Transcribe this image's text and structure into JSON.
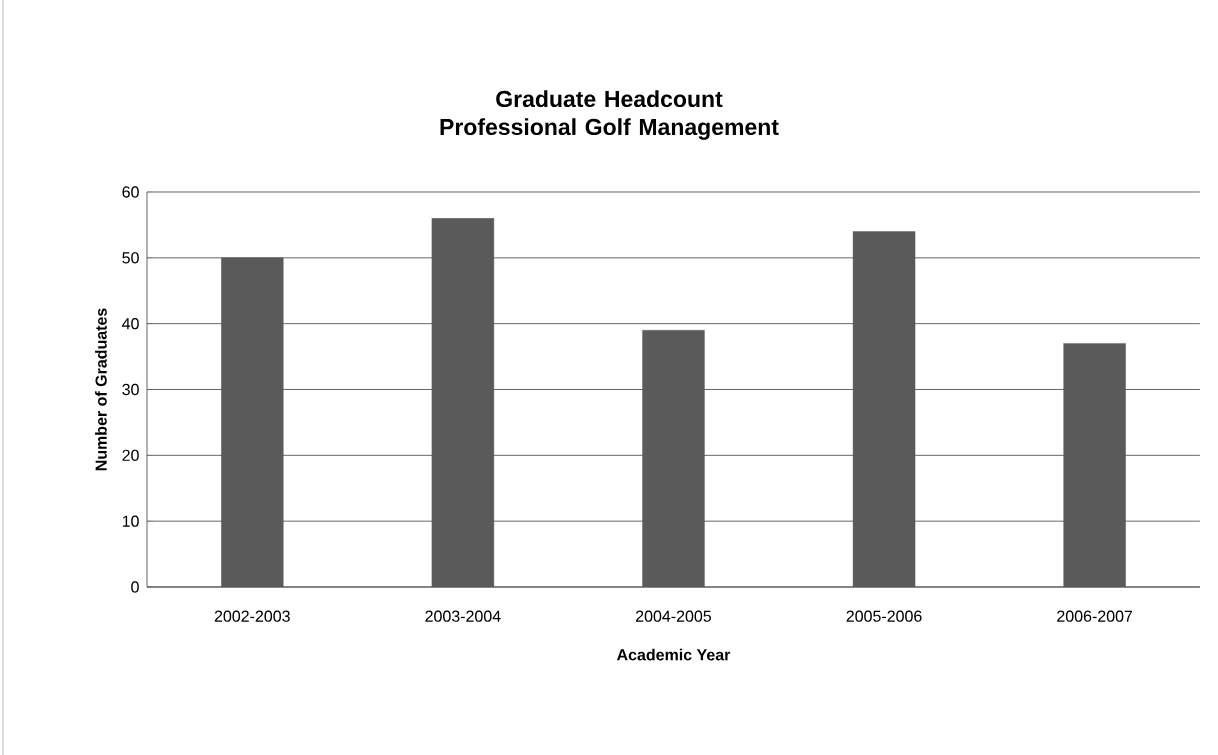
{
  "chart_data": {
    "type": "bar",
    "title": "Graduate Headcount\nProfessional Golf Management",
    "xlabel": "Academic Year",
    "ylabel": "Number of Graduates",
    "categories": [
      "2002-2003",
      "2003-2004",
      "2004-2005",
      "2005-2006",
      "2006-2007"
    ],
    "values": [
      50,
      56,
      39,
      54,
      37
    ],
    "color": "#5a5a5a",
    "ylim": [
      0,
      60
    ],
    "yticks": [
      0,
      10,
      20,
      30,
      40,
      50,
      60
    ],
    "grid": "y"
  }
}
